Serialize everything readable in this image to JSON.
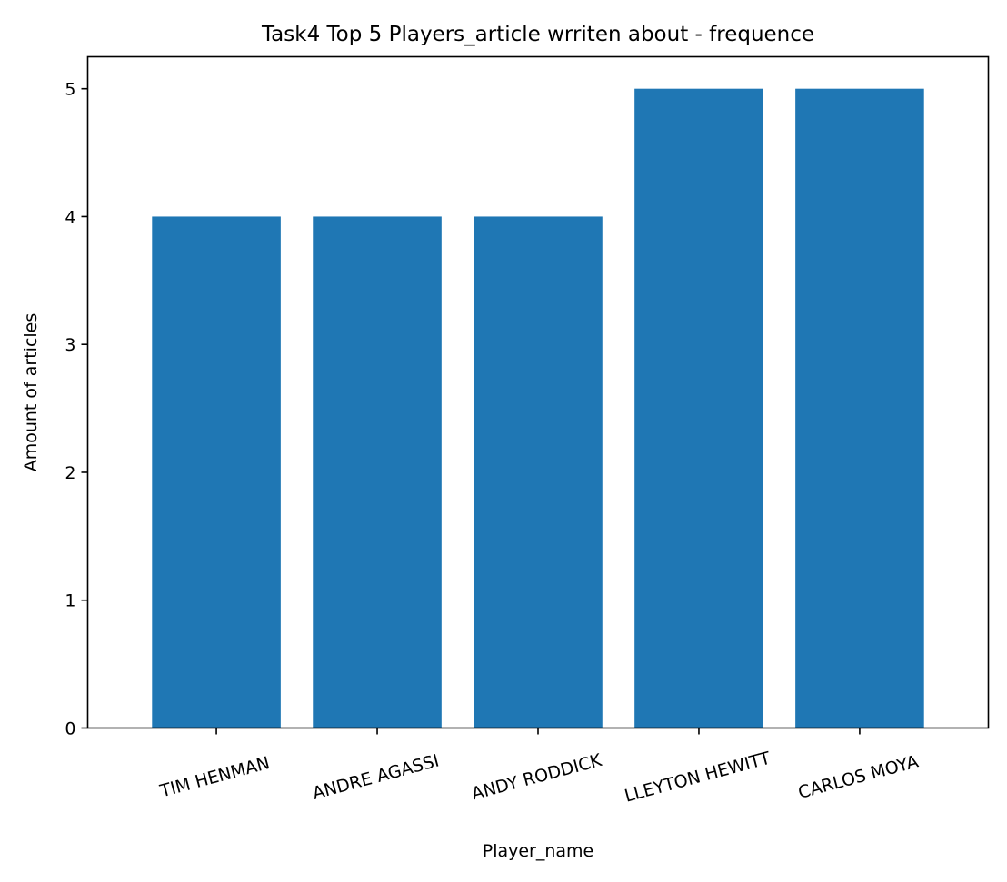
{
  "chart_data": {
    "type": "bar",
    "title": "Task4 Top 5 Players_article wrriten about - frequence",
    "xlabel": "Player_name",
    "ylabel": "Amount of articles",
    "categories": [
      "TIM HENMAN",
      "ANDRE AGASSI",
      "ANDY RODDICK",
      "LLEYTON HEWITT",
      "CARLOS MOYA"
    ],
    "values": [
      4,
      4,
      4,
      5,
      5
    ],
    "yticks": [
      "0",
      "1",
      "2",
      "3",
      "4",
      "5"
    ],
    "ylim": [
      0,
      5.25
    ],
    "grid": false,
    "legend": "none",
    "bar_color": "#1f77b4"
  }
}
